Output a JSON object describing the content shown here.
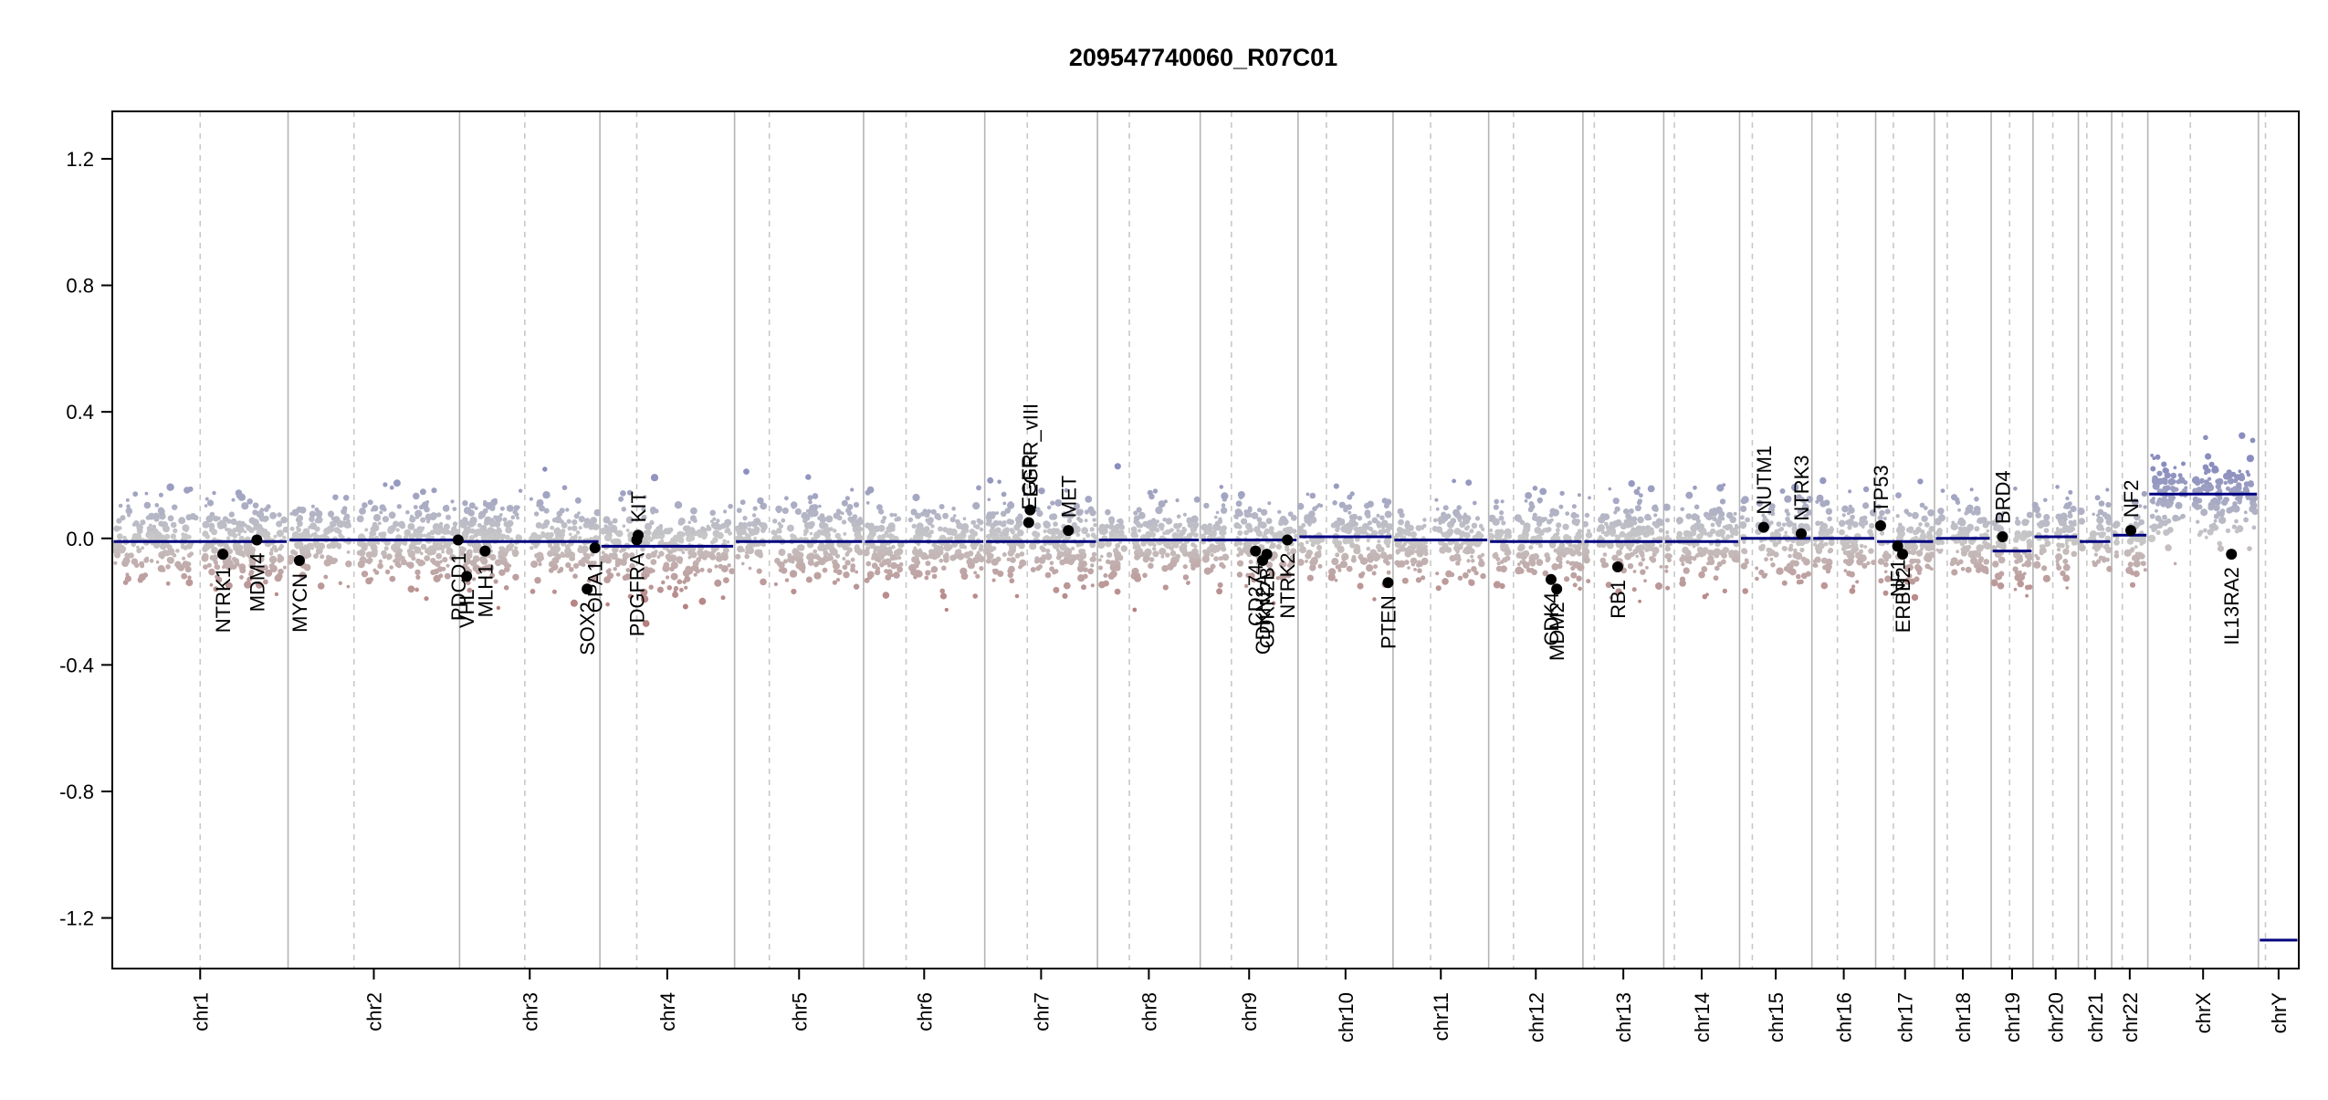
{
  "chart_data": {
    "type": "scatter",
    "title": "209547740060_R07C01",
    "xlabel": "",
    "ylabel": "",
    "ylim": [
      -1.36,
      1.35
    ],
    "yticks": [
      -1.2,
      -0.8,
      -0.4,
      0.0,
      0.4,
      0.8,
      1.2
    ],
    "ytick_labels": [
      "-1.2",
      "-0.8",
      "-0.4",
      "0.0",
      "0.4",
      "0.8",
      "1.2"
    ],
    "grid": false,
    "legend": "none",
    "colors": {
      "gain": "#8a8ebe",
      "loss": "#b68080",
      "neutral": "#c8c8c8",
      "segment": "#000080",
      "gene_point": "#000000"
    },
    "chromosomes": [
      {
        "name": "chr1",
        "start": 0,
        "end": 248,
        "centromere": 124,
        "seg": -0.01
      },
      {
        "name": "chr2",
        "start": 248,
        "end": 490,
        "centromere": 341,
        "seg": -0.005
      },
      {
        "name": "chr3",
        "start": 490,
        "end": 688,
        "centromere": 582,
        "seg": -0.01
      },
      {
        "name": "chr4",
        "start": 688,
        "end": 878,
        "centromere": 740,
        "seg": -0.025
      },
      {
        "name": "chr5",
        "start": 878,
        "end": 1060,
        "centromere": 927,
        "seg": -0.01
      },
      {
        "name": "chr6",
        "start": 1060,
        "end": 1231,
        "centromere": 1120,
        "seg": -0.01
      },
      {
        "name": "chr7",
        "start": 1231,
        "end": 1390,
        "centromere": 1291,
        "seg": -0.01
      },
      {
        "name": "chr8",
        "start": 1390,
        "end": 1535,
        "centromere": 1435,
        "seg": -0.005
      },
      {
        "name": "chr9",
        "start": 1535,
        "end": 1673,
        "centromere": 1579,
        "seg": -0.005
      },
      {
        "name": "chr10",
        "start": 1673,
        "end": 1807,
        "centromere": 1713,
        "seg": 0.005
      },
      {
        "name": "chr11",
        "start": 1807,
        "end": 1942,
        "centromere": 1860,
        "seg": -0.005
      },
      {
        "name": "chr12",
        "start": 1942,
        "end": 2075,
        "centromere": 1977,
        "seg": -0.01
      },
      {
        "name": "chr13",
        "start": 2075,
        "end": 2189,
        "centromere": 2091,
        "seg": -0.01
      },
      {
        "name": "chr14",
        "start": 2189,
        "end": 2296,
        "centromere": 2204,
        "seg": -0.01
      },
      {
        "name": "chr15",
        "start": 2296,
        "end": 2398,
        "centromere": 2314,
        "seg": 0.0
      },
      {
        "name": "chr16",
        "start": 2398,
        "end": 2488,
        "centromere": 2434,
        "seg": 0.0
      },
      {
        "name": "chr17",
        "start": 2488,
        "end": 2571,
        "centromere": 2513,
        "seg": -0.01
      },
      {
        "name": "chr18",
        "start": 2571,
        "end": 2651,
        "centromere": 2589,
        "seg": 0.0
      },
      {
        "name": "chr19",
        "start": 2651,
        "end": 2710,
        "centromere": 2677,
        "seg": -0.04
      },
      {
        "name": "chr20",
        "start": 2710,
        "end": 2774,
        "centromere": 2738,
        "seg": 0.005
      },
      {
        "name": "chr21",
        "start": 2774,
        "end": 2821,
        "centromere": 2786,
        "seg": -0.01
      },
      {
        "name": "chr22",
        "start": 2821,
        "end": 2872,
        "centromere": 2836,
        "seg": 0.01
      },
      {
        "name": "chrX",
        "start": 2872,
        "end": 3028,
        "centromere": 2932,
        "seg": 0.14
      },
      {
        "name": "chrY",
        "start": 3028,
        "end": 3085,
        "centromere": 3038,
        "seg": -1.27
      }
    ],
    "genes": [
      {
        "name": "NTRK1",
        "x": 156,
        "y": -0.05,
        "label_dir": "down"
      },
      {
        "name": "MDM4",
        "x": 204,
        "y": -0.005,
        "label_dir": "down"
      },
      {
        "name": "MYCN",
        "x": 264,
        "y": -0.07,
        "label_dir": "down"
      },
      {
        "name": "PDCD1",
        "x": 488,
        "y": -0.005,
        "label_dir": "down"
      },
      {
        "name": "VHL",
        "x": 500,
        "y": -0.12,
        "label_dir": "down"
      },
      {
        "name": "MLH1",
        "x": 526,
        "y": -0.04,
        "label_dir": "down"
      },
      {
        "name": "SOX2",
        "x": 670,
        "y": -0.16,
        "label_dir": "down"
      },
      {
        "name": "OPA1",
        "x": 681,
        "y": -0.03,
        "label_dir": "down"
      },
      {
        "name": "KIT",
        "x": 742,
        "y": 0.01,
        "label_dir": "up"
      },
      {
        "name": "PDGFRA",
        "x": 740,
        "y": -0.005,
        "label_dir": "down"
      },
      {
        "name": "EGFR",
        "x": 1293,
        "y": 0.05,
        "label_dir": "up"
      },
      {
        "name": "EGFR_vIII",
        "x": 1295,
        "y": 0.09,
        "label_dir": "up"
      },
      {
        "name": "MET",
        "x": 1349,
        "y": 0.025,
        "label_dir": "up"
      },
      {
        "name": "CD274",
        "x": 1613,
        "y": -0.04,
        "label_dir": "down"
      },
      {
        "name": "CDKN2A",
        "x": 1623,
        "y": -0.07,
        "label_dir": "down"
      },
      {
        "name": "CDKN2B",
        "x": 1629,
        "y": -0.05,
        "label_dir": "down"
      },
      {
        "name": "NTRK2",
        "x": 1658,
        "y": -0.005,
        "label_dir": "down"
      },
      {
        "name": "PTEN",
        "x": 1800,
        "y": -0.14,
        "label_dir": "down"
      },
      {
        "name": "CDK4",
        "x": 2030,
        "y": -0.13,
        "label_dir": "down"
      },
      {
        "name": "MDM2",
        "x": 2038,
        "y": -0.16,
        "label_dir": "down"
      },
      {
        "name": "RB1",
        "x": 2124,
        "y": -0.09,
        "label_dir": "down"
      },
      {
        "name": "NUTM1",
        "x": 2330,
        "y": 0.035,
        "label_dir": "up"
      },
      {
        "name": "NTRK3",
        "x": 2383,
        "y": 0.015,
        "label_dir": "up"
      },
      {
        "name": "TP53",
        "x": 2495,
        "y": 0.04,
        "label_dir": "up"
      },
      {
        "name": "NF1",
        "x": 2519,
        "y": -0.025,
        "label_dir": "down"
      },
      {
        "name": "ERBB2",
        "x": 2526,
        "y": -0.05,
        "label_dir": "down"
      },
      {
        "name": "BRD4",
        "x": 2667,
        "y": 0.005,
        "label_dir": "up"
      },
      {
        "name": "NF2",
        "x": 2848,
        "y": 0.025,
        "label_dir": "up"
      },
      {
        "name": "IL13RA2",
        "x": 2990,
        "y": -0.05,
        "label_dir": "down"
      }
    ]
  }
}
